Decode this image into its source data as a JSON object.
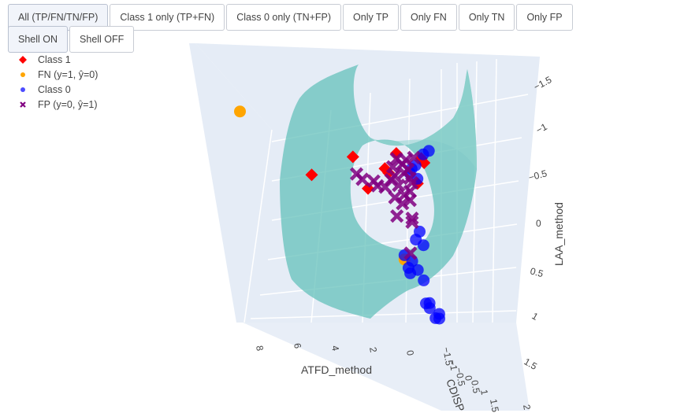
{
  "buttons_row1": [
    "All (TP/FN/TN/FP)",
    "Class 1 only (TP+FN)",
    "Class 0 only (TN+FP)",
    "Only TP",
    "Only FN",
    "Only TN",
    "Only FP"
  ],
  "buttons_row2": [
    "Shell ON",
    "Shell OFF"
  ],
  "active_filter": "All (TP/FN/TN/FP)",
  "legend": [
    {
      "label": "Class 1",
      "color": "#ff0000",
      "symbol": "diamond"
    },
    {
      "label": "FN (y=1, ŷ=0)",
      "color": "#ffa500",
      "symbol": "circle"
    },
    {
      "label": "Class 0",
      "color": "#0000ff",
      "symbol": "circle"
    },
    {
      "label": "FP (y=0, ŷ=1)",
      "color": "#800080",
      "symbol": "x"
    }
  ],
  "colors": {
    "shell": "#5fbfb8",
    "scene_bg": "#e5ecf6",
    "grid": "#ffffff"
  },
  "chart_data": {
    "type": "scatter",
    "dimension": "3d",
    "axes": {
      "x": {
        "title": "ATFD_method",
        "ticks": [
          "8",
          "6",
          "4",
          "2",
          "0"
        ]
      },
      "y": {
        "title": "CDISP",
        "ticks": [
          "−1.5",
          "−1",
          "−0.5",
          "0",
          "0.5",
          "1",
          "1.5",
          "2"
        ]
      },
      "z": {
        "title": "LAA_method",
        "ticks": [
          "−1.5",
          "−1",
          "−0.5",
          "0",
          "0.5",
          "1",
          "1.5"
        ]
      }
    },
    "surface": "shell",
    "series": [
      {
        "name": "Class 1",
        "symbol": "diamond",
        "color": "#ff0000",
        "points": [
          [
            -0.6,
            0.15,
            -0.75
          ],
          [
            -0.4,
            0.2,
            -0.8
          ],
          [
            0.4,
            -0.3,
            -0.8
          ],
          [
            0.9,
            -0.4,
            -0.6
          ],
          [
            -0.2,
            0.2,
            -0.5
          ],
          [
            0.6,
            -0.5,
            -0.55
          ],
          [
            5.5,
            0.3,
            -0.45
          ],
          [
            2.8,
            -0.2,
            -0.7
          ],
          [
            2.0,
            -0.2,
            -0.35
          ]
        ]
      },
      {
        "name": "FN (y=1, ŷ=0)",
        "symbol": "circle",
        "color": "#ffa500",
        "points": [
          [
            9.5,
            0.5,
            -1.1
          ],
          [
            0.8,
            0.5,
            0.4
          ]
        ]
      },
      {
        "name": "Class 0",
        "symbol": "circle",
        "color": "#0000ff",
        "points": [
          [
            -0.8,
            0.2,
            -0.9
          ],
          [
            -0.5,
            0.2,
            -0.85
          ],
          [
            -0.3,
            0.0,
            -0.7
          ],
          [
            -0.2,
            -0.1,
            -0.65
          ],
          [
            0.0,
            0.0,
            -0.6
          ],
          [
            -0.3,
            0.1,
            -0.55
          ],
          [
            0.0,
            0.5,
            0.05
          ],
          [
            0.2,
            0.5,
            0.15
          ],
          [
            -0.1,
            0.6,
            0.2
          ],
          [
            0.8,
            0.5,
            0.35
          ],
          [
            0.6,
            0.7,
            0.4
          ],
          [
            0.9,
            0.8,
            0.48
          ],
          [
            0.6,
            0.6,
            0.55
          ],
          [
            0.2,
            0.6,
            0.5
          ],
          [
            0.2,
            0.9,
            0.6
          ],
          [
            0.5,
            1.3,
            0.85
          ],
          [
            0.1,
            1.1,
            0.85
          ],
          [
            0.3,
            1.3,
            0.9
          ],
          [
            0.2,
            1.5,
            1.0
          ],
          [
            -0.1,
            1.4,
            0.95
          ],
          [
            0.0,
            1.5,
            1.0
          ]
        ]
      },
      {
        "name": "FP (y=0, ŷ=1)",
        "symbol": "x",
        "color": "#800080",
        "points": [
          [
            2.5,
            -0.3,
            -0.5
          ],
          [
            2.3,
            -0.2,
            -0.45
          ],
          [
            1.8,
            -0.1,
            -0.45
          ],
          [
            1.6,
            -0.1,
            -0.4
          ],
          [
            1.3,
            0.0,
            -0.4
          ],
          [
            1.1,
            0.1,
            -0.5
          ],
          [
            0.9,
            0.1,
            -0.55
          ],
          [
            0.8,
            0.2,
            -0.45
          ],
          [
            0.5,
            0.1,
            -0.7
          ],
          [
            0.4,
            0.1,
            -0.6
          ],
          [
            0.3,
            0.2,
            -0.65
          ],
          [
            0.2,
            0.2,
            -0.55
          ],
          [
            0.1,
            0.2,
            -0.5
          ],
          [
            0.3,
            0.3,
            -0.4
          ],
          [
            0.6,
            0.3,
            -0.35
          ],
          [
            0.9,
            0.0,
            -0.65
          ],
          [
            0.7,
            0.0,
            -0.75
          ],
          [
            1.0,
            0.2,
            -0.3
          ],
          [
            0.4,
            0.4,
            -0.3
          ],
          [
            0.8,
            0.4,
            -0.25
          ],
          [
            1.2,
            0.5,
            -0.1
          ],
          [
            0.5,
            0.6,
            -0.1
          ],
          [
            0.4,
            0.5,
            -0.05
          ],
          [
            0.9,
            0.9,
            0.3
          ],
          [
            0.0,
            0.2,
            -0.8
          ],
          [
            0.2,
            0.0,
            -0.75
          ]
        ]
      }
    ]
  }
}
